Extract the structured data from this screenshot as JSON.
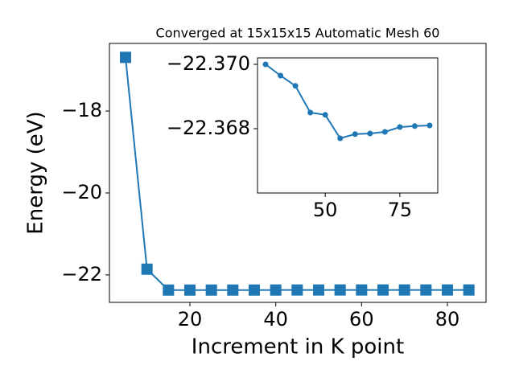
{
  "chart_data": [
    {
      "type": "line",
      "title": "Converged at 15x15x15 Automatic Mesh 60",
      "x_label": "Increment in K point",
      "y_label": "Energy (eV)",
      "x": [
        5,
        10,
        15,
        20,
        25,
        30,
        35,
        40,
        45,
        50,
        55,
        60,
        65,
        70,
        75,
        80,
        85
      ],
      "values": [
        -16.69,
        -21.86,
        -22.37,
        -22.37,
        -22.37,
        -22.37,
        -22.36965,
        -22.36933,
        -22.3685,
        -22.36843,
        -22.3677,
        -22.36783,
        -22.36785,
        -22.3679,
        -22.36805,
        -22.36808,
        -22.3681
      ],
      "color": "#1f77b4",
      "marker": "square",
      "xlim": [
        1.25,
        89
      ],
      "ylim": [
        -22.67,
        -16.35
      ],
      "xticks": [
        20,
        40,
        60,
        80
      ],
      "yticks": [
        {
          "value": -22,
          "label": "−22"
        },
        {
          "value": -20,
          "label": "−20"
        },
        {
          "value": -18,
          "label": "−18"
        }
      ]
    },
    {
      "type": "line",
      "x": [
        30,
        35,
        40,
        45,
        50,
        55,
        60,
        65,
        70,
        75,
        80,
        85
      ],
      "values": [
        -22.37,
        -22.36965,
        -22.36933,
        -22.3685,
        -22.36843,
        -22.3677,
        -22.36783,
        -22.36785,
        -22.3679,
        -22.36805,
        -22.36808,
        -22.3681
      ],
      "color": "#1f77b4",
      "marker": "circle",
      "xlim": [
        27.3,
        87.7
      ],
      "ylim": [
        -22.3702,
        -22.366
      ],
      "yinvert": true,
      "xticks": [
        50,
        75
      ],
      "yticks": [
        {
          "value": -22.37,
          "label": "−22.370"
        },
        {
          "value": -22.368,
          "label": "−22.368"
        }
      ]
    }
  ]
}
